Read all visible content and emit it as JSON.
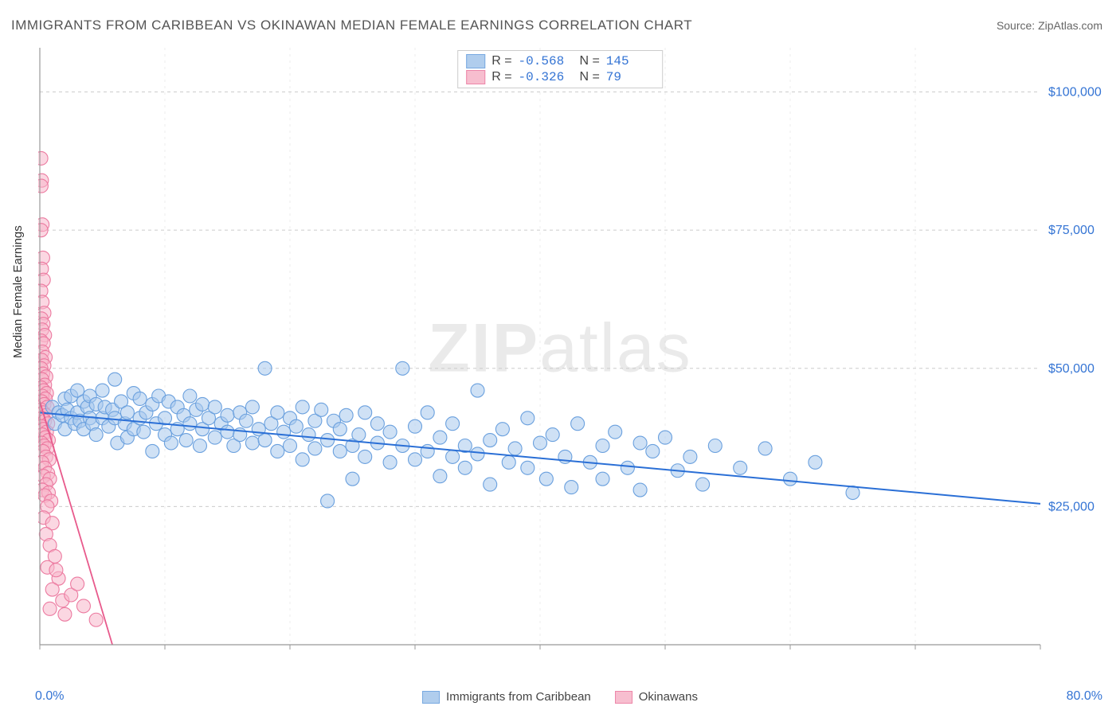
{
  "title": "IMMIGRANTS FROM CARIBBEAN VS OKINAWAN MEDIAN FEMALE EARNINGS CORRELATION CHART",
  "source_label": "Source: ",
  "source_value": "ZipAtlas.com",
  "ylabel": "Median Female Earnings",
  "watermark_a": "ZIP",
  "watermark_b": "atlas",
  "chart": {
    "type": "scatter",
    "xlim": [
      0,
      80
    ],
    "ylim": [
      0,
      108000
    ],
    "x_tick_start": "0.0%",
    "x_tick_end": "80.0%",
    "x_major_ticks": [
      0,
      10,
      20,
      30,
      40,
      50,
      60,
      70,
      80
    ],
    "y_ticks": [
      {
        "v": 25000,
        "label": "$25,000"
      },
      {
        "v": 50000,
        "label": "$50,000"
      },
      {
        "v": 75000,
        "label": "$75,000"
      },
      {
        "v": 100000,
        "label": "$100,000"
      }
    ],
    "plot_border_color": "#999999",
    "grid_color": "#cccccc",
    "marker_radius": 8.5,
    "marker_stroke_width": 1.1,
    "series": [
      {
        "id": "blue",
        "label": "Immigrants from Caribbean",
        "fill": "#a8c8ec",
        "stroke": "#6aa0de",
        "fill_opacity": 0.55,
        "R": "-0.568",
        "N": "145",
        "trend": {
          "x1": 0,
          "y1": 42000,
          "x2": 80,
          "y2": 25500,
          "color": "#2a6fd6",
          "width": 2
        },
        "points": [
          [
            1.0,
            43000
          ],
          [
            1.2,
            40000
          ],
          [
            1.5,
            42000
          ],
          [
            1.8,
            41500
          ],
          [
            2.0,
            44500
          ],
          [
            2.0,
            39000
          ],
          [
            2.2,
            42500
          ],
          [
            2.5,
            41000
          ],
          [
            2.5,
            45000
          ],
          [
            2.8,
            40000
          ],
          [
            3.0,
            46000
          ],
          [
            3.0,
            42000
          ],
          [
            3.2,
            40500
          ],
          [
            3.5,
            44000
          ],
          [
            3.5,
            39000
          ],
          [
            3.8,
            43000
          ],
          [
            4.0,
            41000
          ],
          [
            4.0,
            45000
          ],
          [
            4.2,
            40000
          ],
          [
            4.5,
            43500
          ],
          [
            4.5,
            38000
          ],
          [
            5.0,
            46000
          ],
          [
            5.0,
            41000
          ],
          [
            5.2,
            43000
          ],
          [
            5.5,
            39500
          ],
          [
            5.8,
            42500
          ],
          [
            6.0,
            48000
          ],
          [
            6.0,
            41000
          ],
          [
            6.2,
            36500
          ],
          [
            6.5,
            44000
          ],
          [
            6.8,
            40000
          ],
          [
            7.0,
            42000
          ],
          [
            7.0,
            37500
          ],
          [
            7.5,
            45500
          ],
          [
            7.5,
            39000
          ],
          [
            8.0,
            41000
          ],
          [
            8.0,
            44500
          ],
          [
            8.3,
            38500
          ],
          [
            8.5,
            42000
          ],
          [
            9.0,
            35000
          ],
          [
            9.0,
            43500
          ],
          [
            9.3,
            40000
          ],
          [
            9.5,
            45000
          ],
          [
            10.0,
            38000
          ],
          [
            10.0,
            41000
          ],
          [
            10.3,
            44000
          ],
          [
            10.5,
            36500
          ],
          [
            11.0,
            43000
          ],
          [
            11.0,
            39000
          ],
          [
            11.5,
            41500
          ],
          [
            11.7,
            37000
          ],
          [
            12.0,
            45000
          ],
          [
            12.0,
            40000
          ],
          [
            12.5,
            42500
          ],
          [
            12.8,
            36000
          ],
          [
            13.0,
            43500
          ],
          [
            13.0,
            39000
          ],
          [
            13.5,
            41000
          ],
          [
            14.0,
            37500
          ],
          [
            14.0,
            43000
          ],
          [
            14.5,
            40000
          ],
          [
            15.0,
            38500
          ],
          [
            15.0,
            41500
          ],
          [
            15.5,
            36000
          ],
          [
            16.0,
            42000
          ],
          [
            16.0,
            38000
          ],
          [
            16.5,
            40500
          ],
          [
            17.0,
            36500
          ],
          [
            17.0,
            43000
          ],
          [
            17.5,
            39000
          ],
          [
            18.0,
            50000
          ],
          [
            18.0,
            37000
          ],
          [
            18.5,
            40000
          ],
          [
            19.0,
            42000
          ],
          [
            19.0,
            35000
          ],
          [
            19.5,
            38500
          ],
          [
            20.0,
            41000
          ],
          [
            20.0,
            36000
          ],
          [
            20.5,
            39500
          ],
          [
            21.0,
            43000
          ],
          [
            21.0,
            33500
          ],
          [
            21.5,
            38000
          ],
          [
            22.0,
            40500
          ],
          [
            22.0,
            35500
          ],
          [
            22.5,
            42500
          ],
          [
            23.0,
            37000
          ],
          [
            23.0,
            26000
          ],
          [
            23.5,
            40500
          ],
          [
            24.0,
            35000
          ],
          [
            24.0,
            39000
          ],
          [
            24.5,
            41500
          ],
          [
            25.0,
            36000
          ],
          [
            25.0,
            30000
          ],
          [
            25.5,
            38000
          ],
          [
            26.0,
            42000
          ],
          [
            26.0,
            34000
          ],
          [
            27.0,
            40000
          ],
          [
            27.0,
            36500
          ],
          [
            28.0,
            33000
          ],
          [
            28.0,
            38500
          ],
          [
            29.0,
            50000
          ],
          [
            29.0,
            36000
          ],
          [
            30.0,
            39500
          ],
          [
            30.0,
            33500
          ],
          [
            31.0,
            42000
          ],
          [
            31.0,
            35000
          ],
          [
            32.0,
            37500
          ],
          [
            32.0,
            30500
          ],
          [
            33.0,
            40000
          ],
          [
            33.0,
            34000
          ],
          [
            34.0,
            36000
          ],
          [
            34.0,
            32000
          ],
          [
            35.0,
            46000
          ],
          [
            35.0,
            34500
          ],
          [
            36.0,
            37000
          ],
          [
            36.0,
            29000
          ],
          [
            37.0,
            39000
          ],
          [
            37.5,
            33000
          ],
          [
            38.0,
            35500
          ],
          [
            39.0,
            41000
          ],
          [
            39.0,
            32000
          ],
          [
            40.0,
            36500
          ],
          [
            40.5,
            30000
          ],
          [
            41.0,
            38000
          ],
          [
            42.0,
            34000
          ],
          [
            42.5,
            28500
          ],
          [
            43.0,
            40000
          ],
          [
            44.0,
            33000
          ],
          [
            45.0,
            36000
          ],
          [
            45.0,
            30000
          ],
          [
            46.0,
            38500
          ],
          [
            47.0,
            32000
          ],
          [
            48.0,
            36500
          ],
          [
            48.0,
            28000
          ],
          [
            49.0,
            35000
          ],
          [
            50.0,
            37500
          ],
          [
            51.0,
            31500
          ],
          [
            52.0,
            34000
          ],
          [
            53.0,
            29000
          ],
          [
            54.0,
            36000
          ],
          [
            56.0,
            32000
          ],
          [
            58.0,
            35500
          ],
          [
            60.0,
            30000
          ],
          [
            62.0,
            33000
          ],
          [
            65.0,
            27500
          ]
        ]
      },
      {
        "id": "pink",
        "label": "Okinawans",
        "fill": "#f7b7ca",
        "stroke": "#ec7aa0",
        "fill_opacity": 0.55,
        "R": "-0.326",
        "N": "79",
        "trend": {
          "x1": 0,
          "y1": 44000,
          "x2": 5.8,
          "y2": 0,
          "color": "#e85a8c",
          "width": 1.8
        },
        "points": [
          [
            0.1,
            88000
          ],
          [
            0.15,
            84000
          ],
          [
            0.12,
            83000
          ],
          [
            0.2,
            76000
          ],
          [
            0.1,
            75000
          ],
          [
            0.25,
            70000
          ],
          [
            0.15,
            68000
          ],
          [
            0.3,
            66000
          ],
          [
            0.1,
            64000
          ],
          [
            0.2,
            62000
          ],
          [
            0.35,
            60000
          ],
          [
            0.12,
            59000
          ],
          [
            0.28,
            58000
          ],
          [
            0.18,
            57000
          ],
          [
            0.4,
            56000
          ],
          [
            0.1,
            55000
          ],
          [
            0.3,
            54500
          ],
          [
            0.2,
            53000
          ],
          [
            0.45,
            52000
          ],
          [
            0.15,
            51500
          ],
          [
            0.35,
            50500
          ],
          [
            0.1,
            50000
          ],
          [
            0.25,
            49000
          ],
          [
            0.5,
            48500
          ],
          [
            0.18,
            48000
          ],
          [
            0.4,
            47000
          ],
          [
            0.12,
            46500
          ],
          [
            0.3,
            46000
          ],
          [
            0.55,
            45500
          ],
          [
            0.2,
            45000
          ],
          [
            0.45,
            44500
          ],
          [
            0.15,
            44000
          ],
          [
            0.35,
            43500
          ],
          [
            0.6,
            43000
          ],
          [
            0.1,
            42500
          ],
          [
            0.28,
            42000
          ],
          [
            0.5,
            41500
          ],
          [
            0.18,
            41000
          ],
          [
            0.4,
            40500
          ],
          [
            0.65,
            40000
          ],
          [
            0.12,
            39500
          ],
          [
            0.3,
            39000
          ],
          [
            0.55,
            38500
          ],
          [
            0.2,
            38000
          ],
          [
            0.45,
            37500
          ],
          [
            0.7,
            37000
          ],
          [
            0.15,
            36500
          ],
          [
            0.35,
            36000
          ],
          [
            0.6,
            35500
          ],
          [
            0.25,
            35000
          ],
          [
            0.5,
            34000
          ],
          [
            0.75,
            33500
          ],
          [
            0.18,
            33000
          ],
          [
            0.4,
            32000
          ],
          [
            0.65,
            31000
          ],
          [
            0.3,
            30500
          ],
          [
            0.8,
            30000
          ],
          [
            0.5,
            29000
          ],
          [
            0.2,
            28000
          ],
          [
            0.7,
            27500
          ],
          [
            0.4,
            27000
          ],
          [
            0.9,
            26000
          ],
          [
            0.6,
            25000
          ],
          [
            0.3,
            23000
          ],
          [
            1.0,
            22000
          ],
          [
            0.5,
            20000
          ],
          [
            0.8,
            18000
          ],
          [
            1.2,
            16000
          ],
          [
            0.6,
            14000
          ],
          [
            1.5,
            12000
          ],
          [
            1.0,
            10000
          ],
          [
            1.8,
            8000
          ],
          [
            0.8,
            6500
          ],
          [
            1.3,
            13500
          ],
          [
            2.0,
            5500
          ],
          [
            2.5,
            9000
          ],
          [
            3.0,
            11000
          ],
          [
            3.5,
            7000
          ],
          [
            4.5,
            4500
          ]
        ]
      }
    ]
  }
}
